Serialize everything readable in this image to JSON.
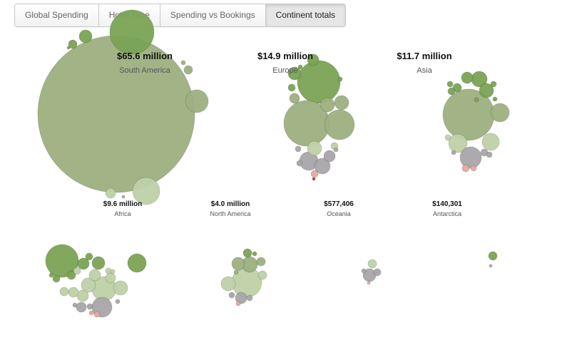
{
  "tabs": [
    {
      "label": "Global Spending",
      "active": false
    },
    {
      "label": "Hotel Type",
      "active": false
    },
    {
      "label": "Spending vs Bookings",
      "active": false
    },
    {
      "label": "Continent totals",
      "active": true
    }
  ],
  "colors": {
    "dark_green": "#7aa354",
    "medium_green": "#9db080",
    "light_green": "#bfd1a8",
    "gray": "#a8a5a8",
    "pink": "#e6a7a3",
    "red": "#b23a2e"
  },
  "chart_data": {
    "type": "packed-bubble",
    "title": "",
    "groups": [
      {
        "name": "South America",
        "total_label": "$65.6 million"
      },
      {
        "name": "Europe",
        "total_label": "$14.9 million"
      },
      {
        "name": "Asia",
        "total_label": "$11.7 million"
      },
      {
        "name": "Africa",
        "total_label": "$9.6 million"
      },
      {
        "name": "North America",
        "total_label": "$4.0 million"
      },
      {
        "name": "Oceania",
        "total_label": "$577,406"
      },
      {
        "name": "Antarctica",
        "total_label": "$140,301"
      }
    ]
  }
}
